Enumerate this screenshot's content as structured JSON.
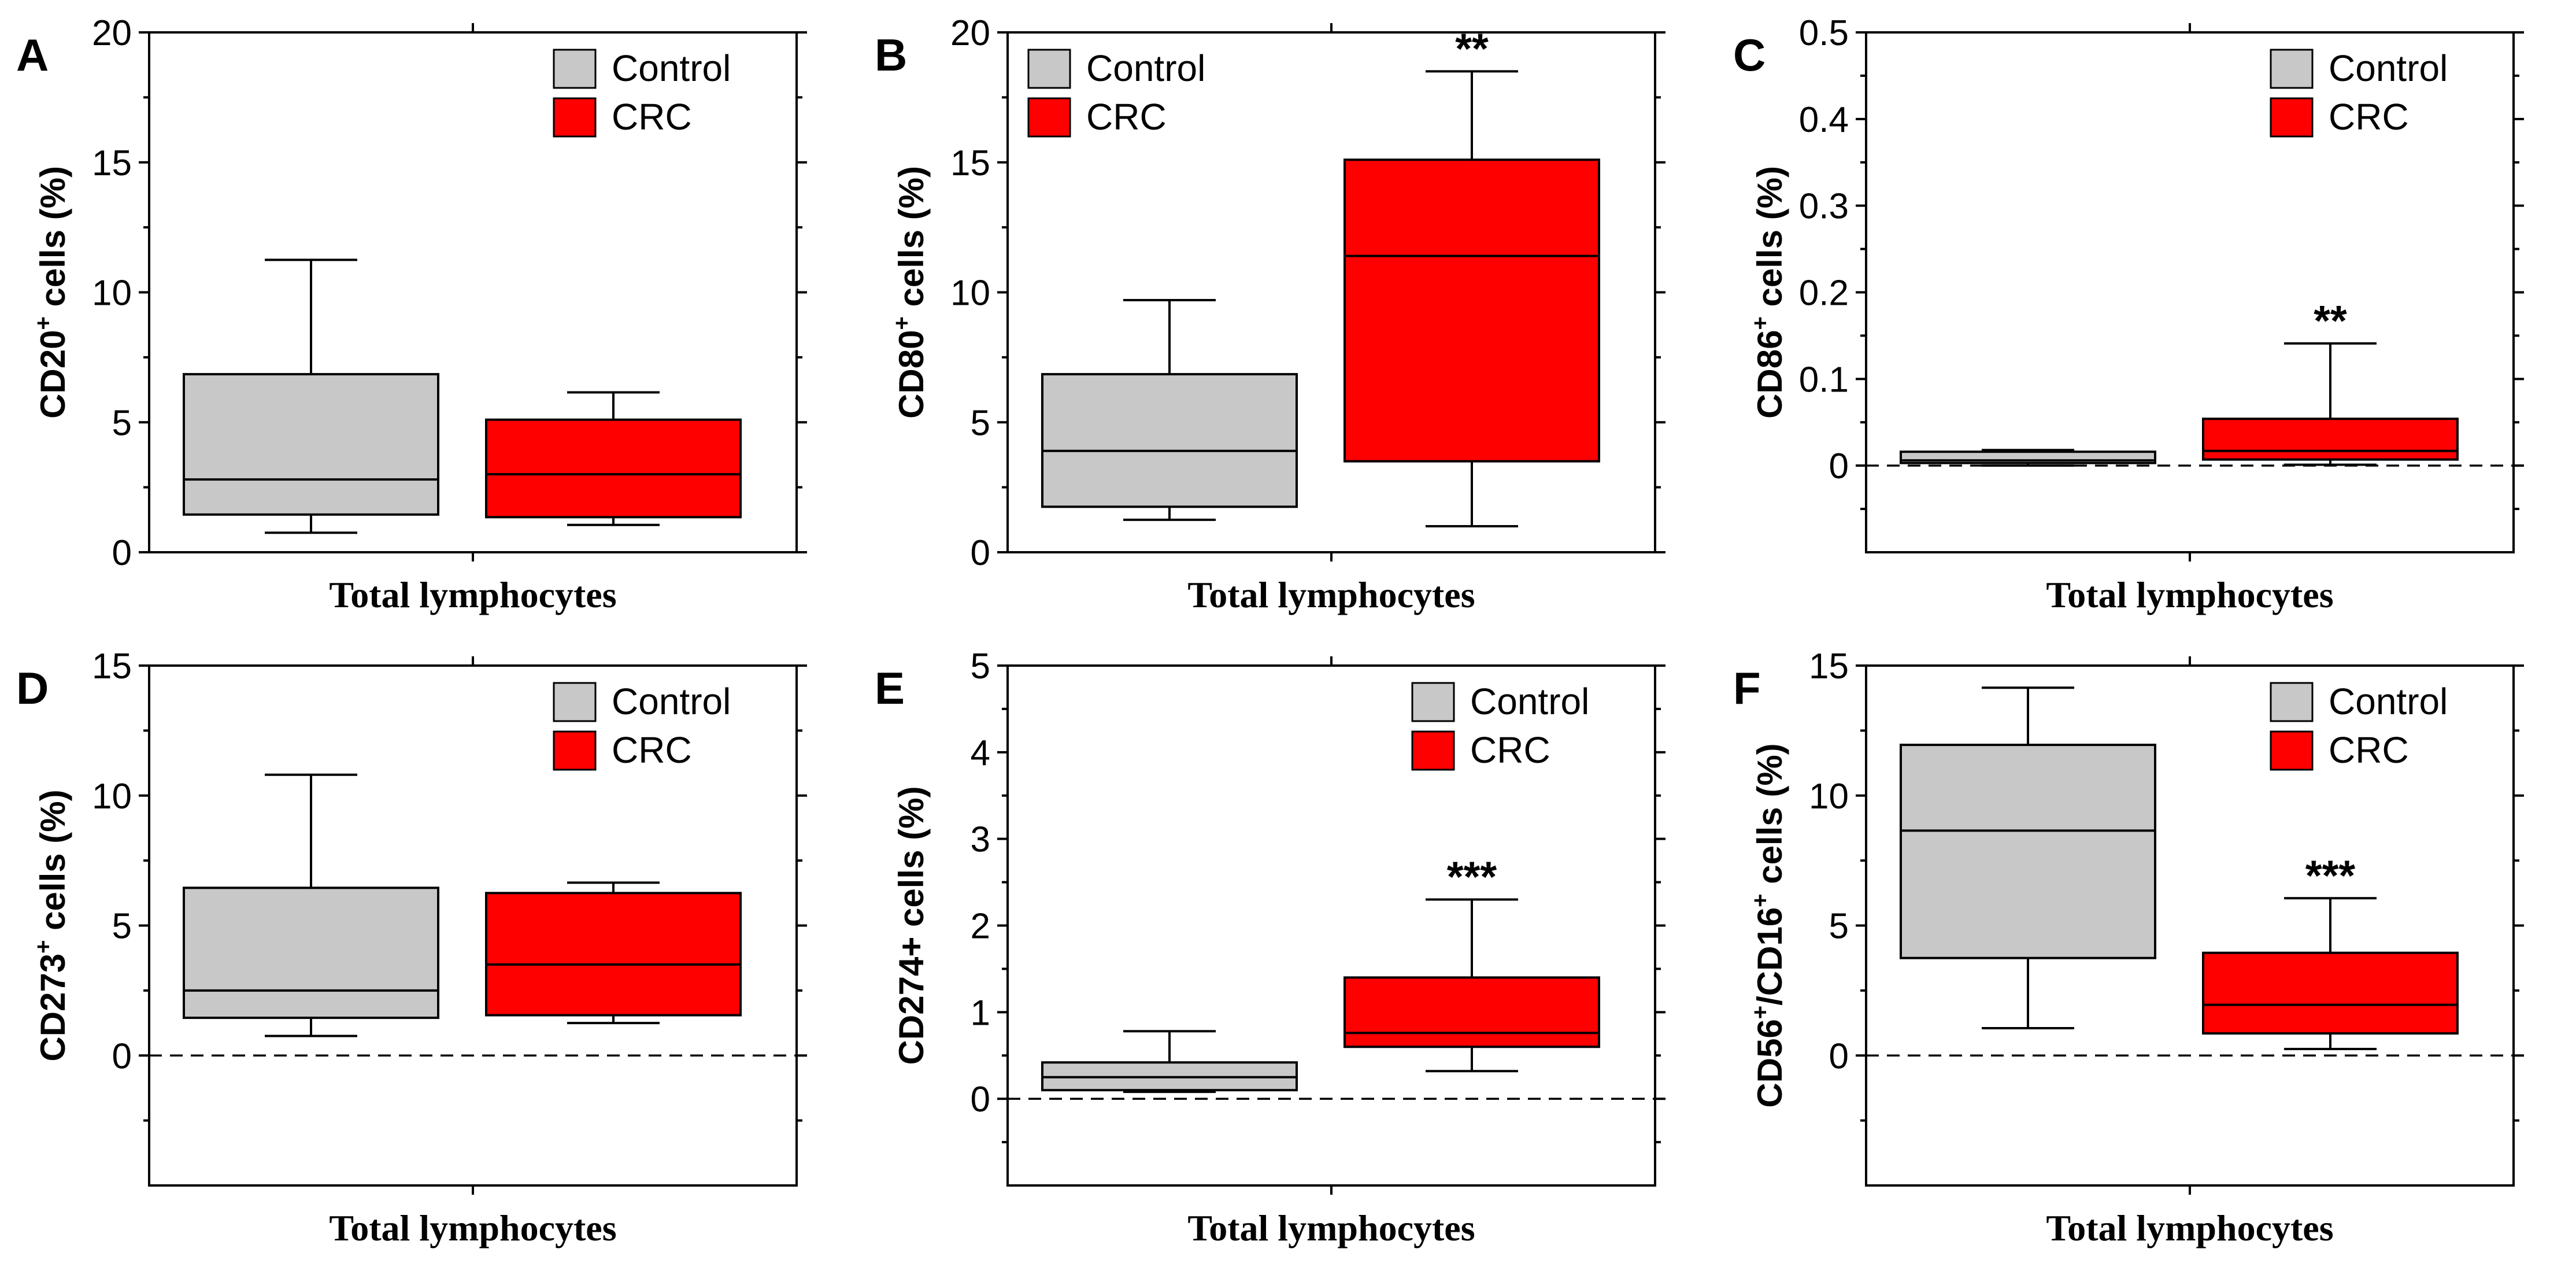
{
  "figure": {
    "colors": {
      "control": "#c8c8c8",
      "crc": "#ff0000",
      "axis": "#000000"
    },
    "legend_entries": [
      "Control",
      "CRC"
    ]
  },
  "chart_data": [
    {
      "type": "box",
      "panel_letter": "A",
      "ylabel_main": "CD20",
      "ylabel_sup": "+",
      "ylabel_rest": " cells (%)",
      "xlabel": "Total lymphocytes",
      "ylim": [
        0,
        20
      ],
      "yticks": [
        0,
        5,
        10,
        15,
        20
      ],
      "yticklabels": [
        "0",
        "5",
        "10",
        "15",
        "20"
      ],
      "zero_dashed": false,
      "legend": "top-right",
      "series": [
        {
          "name": "Control",
          "whisker_low": 0.75,
          "q1": 1.45,
          "median": 2.8,
          "q3": 6.85,
          "whisker_high": 11.25,
          "significance": ""
        },
        {
          "name": "CRC",
          "whisker_low": 1.05,
          "q1": 1.35,
          "median": 3.0,
          "q3": 5.1,
          "whisker_high": 6.15,
          "significance": ""
        }
      ]
    },
    {
      "type": "box",
      "panel_letter": "B",
      "ylabel_main": "CD80",
      "ylabel_sup": "+",
      "ylabel_rest": " cells (%)",
      "xlabel": "Total lymphocytes",
      "ylim": [
        0,
        20
      ],
      "yticks": [
        0,
        5,
        10,
        15,
        20
      ],
      "yticklabels": [
        "0",
        "5",
        "10",
        "15",
        "20"
      ],
      "zero_dashed": false,
      "legend": "top-left",
      "series": [
        {
          "name": "Control",
          "whisker_low": 1.25,
          "q1": 1.75,
          "median": 3.9,
          "q3": 6.85,
          "whisker_high": 9.7,
          "significance": ""
        },
        {
          "name": "CRC",
          "whisker_low": 1.0,
          "q1": 3.5,
          "median": 11.4,
          "q3": 15.1,
          "whisker_high": 18.5,
          "significance": "**"
        }
      ]
    },
    {
      "type": "box",
      "panel_letter": "C",
      "ylabel_main": "CD86",
      "ylabel_sup": "+",
      "ylabel_rest": " cells (%)",
      "xlabel": "Total lymphocytes",
      "ylim": [
        -0.1,
        0.5
      ],
      "yticks": [
        0,
        0.1,
        0.2,
        0.3,
        0.4,
        0.5
      ],
      "yticklabels": [
        "0",
        "0.1",
        "0.2",
        "0.3",
        "0.4",
        "0.5"
      ],
      "zero_dashed": true,
      "legend": "top-right",
      "series": [
        {
          "name": "Control",
          "whisker_low": 0.0,
          "q1": 0.003,
          "median": 0.006,
          "q3": 0.016,
          "whisker_high": 0.018,
          "significance": ""
        },
        {
          "name": "CRC",
          "whisker_low": 0.001,
          "q1": 0.007,
          "median": 0.017,
          "q3": 0.054,
          "whisker_high": 0.141,
          "significance": "**"
        }
      ]
    },
    {
      "type": "box",
      "panel_letter": "D",
      "ylabel_main": "CD273",
      "ylabel_sup": "+",
      "ylabel_rest": " cells (%)",
      "xlabel": "Total lymphocytes",
      "ylim": [
        -5,
        15
      ],
      "yticks": [
        0,
        5,
        10,
        15
      ],
      "yticklabels": [
        "0",
        "5",
        "10",
        "15"
      ],
      "zero_dashed": true,
      "legend": "top-right",
      "series": [
        {
          "name": "Control",
          "whisker_low": 0.75,
          "q1": 1.45,
          "median": 2.5,
          "q3": 6.45,
          "whisker_high": 10.8,
          "significance": ""
        },
        {
          "name": "CRC",
          "whisker_low": 1.25,
          "q1": 1.55,
          "median": 3.5,
          "q3": 6.25,
          "whisker_high": 6.65,
          "significance": ""
        }
      ]
    },
    {
      "type": "box",
      "panel_letter": "E",
      "ylabel_main": "CD274+ cells (%)",
      "ylabel_sup": "",
      "ylabel_rest": "",
      "xlabel": "Total lymphocytes",
      "ylim": [
        -1,
        5
      ],
      "yticks": [
        0,
        1,
        2,
        3,
        4,
        5
      ],
      "yticklabels": [
        "0",
        "1",
        "2",
        "3",
        "4",
        "5"
      ],
      "zero_dashed": true,
      "legend": "top-right",
      "series": [
        {
          "name": "Control",
          "whisker_low": 0.08,
          "q1": 0.1,
          "median": 0.25,
          "q3": 0.42,
          "whisker_high": 0.78,
          "significance": ""
        },
        {
          "name": "CRC",
          "whisker_low": 0.32,
          "q1": 0.6,
          "median": 0.76,
          "q3": 1.4,
          "whisker_high": 2.3,
          "significance": "***"
        }
      ]
    },
    {
      "type": "box",
      "panel_letter": "F",
      "ylabel_main": "CD56",
      "ylabel_sup": "+",
      "ylabel_rest": "/CD16",
      "ylabel_sup2": "+",
      "ylabel_rest2": " cells (%)",
      "xlabel": "Total lymphocytes",
      "ylim": [
        -5,
        15
      ],
      "yticks": [
        0,
        5,
        10,
        15
      ],
      "yticklabels": [
        "0",
        "5",
        "10",
        "15"
      ],
      "zero_dashed": true,
      "legend": "top-right",
      "series": [
        {
          "name": "Control",
          "whisker_low": 1.05,
          "q1": 3.75,
          "median": 8.65,
          "q3": 11.95,
          "whisker_high": 14.15,
          "significance": ""
        },
        {
          "name": "CRC",
          "whisker_low": 0.25,
          "q1": 0.85,
          "median": 1.95,
          "q3": 3.95,
          "whisker_high": 6.05,
          "significance": "***"
        }
      ]
    }
  ]
}
